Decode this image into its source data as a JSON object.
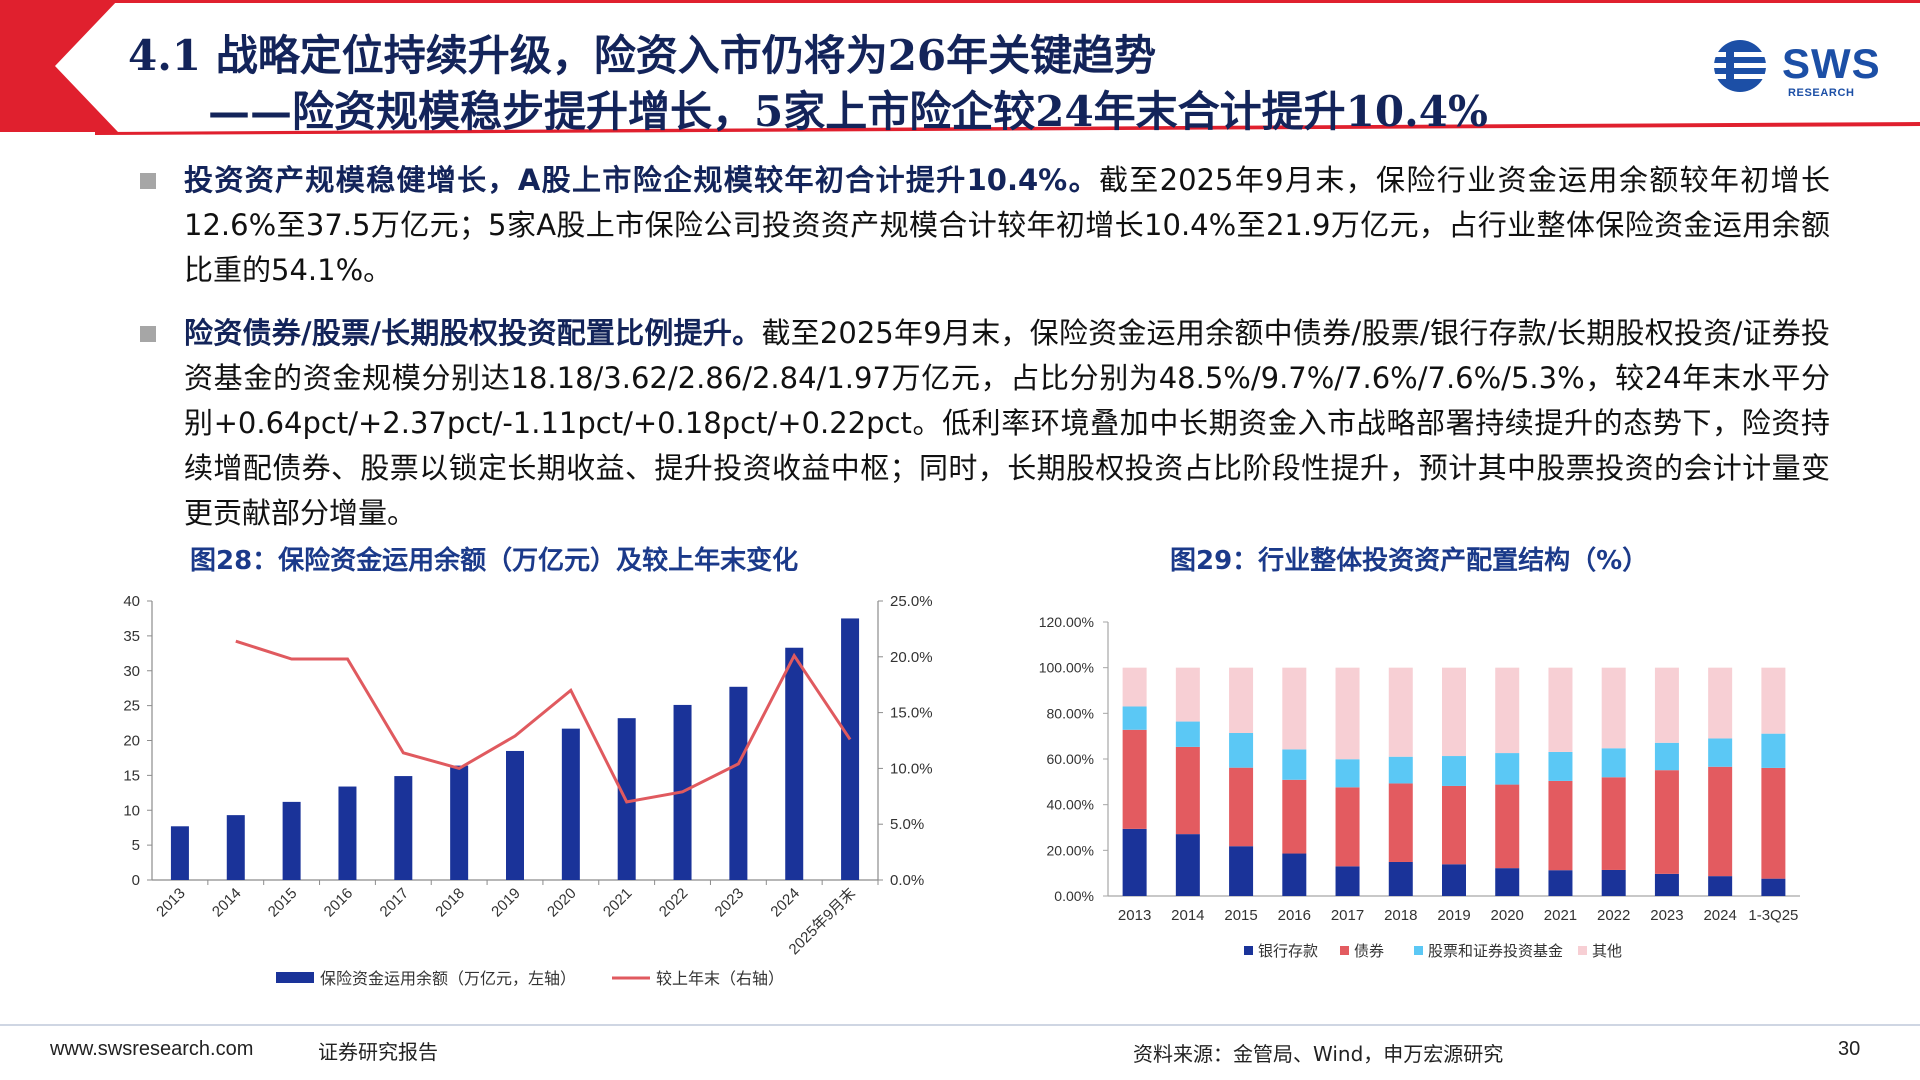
{
  "header": {
    "title_line1": "4.1 战略定位持续升级，险资入市仍将为26年关键趋势",
    "title_line2": "——险资规模稳步提升增长，5家上市险企较24年末合计提升10.4%",
    "logo_text": "SWS",
    "logo_sub": "RESEARCH",
    "colors": {
      "accent": "#e0202e",
      "title": "#13245a",
      "brand": "#1c4fa6"
    }
  },
  "bullets": [
    {
      "lead": "投资资产规模稳健增长，A股上市险企规模较年初合计提升10.4%。",
      "body": "截至2025年9月末，保险行业资金运用余额较年初增长12.6%至37.5万亿元；5家A股上市保险公司投资资产规模合计较年初增长10.4%至21.9万亿元，占行业整体保险资金运用余额比重的54.1%。"
    },
    {
      "lead": "险资债券/股票/长期股权投资配置比例提升。",
      "body": "截至2025年9月末，保险资金运用余额中债券/股票/银行存款/长期股权投资/证券投资基金的资金规模分别达18.18/3.62/2.86/2.84/1.97万亿元，占比分别为48.5%/9.7%/7.6%/7.6%/5.3%，较24年末水平分别+0.64pct/+2.37pct/-1.11pct/+0.18pct/+0.22pct。低利率环境叠加中长期资金入市战略部署持续提升的态势下，险资持续增配债券、股票以锁定长期收益、提升投资收益中枢；同时，长期股权投资占比阶段性提升，预计其中股票投资的会计计量变更贡献部分增量。"
    }
  ],
  "figures": {
    "fig28_title": "图28：保险资金运用余额（万亿元）及较上年末变化",
    "fig29_title": "图29：行业整体投资资产配置结构（%）"
  },
  "chart_data": [
    {
      "type": "bar",
      "categories": [
        "2013",
        "2014",
        "2015",
        "2016",
        "2017",
        "2018",
        "2019",
        "2020",
        "2021",
        "2022",
        "2023",
        "2024",
        "2025年9月末"
      ],
      "series": [
        {
          "name": "保险资金运用余额（万亿元，左轴）",
          "type": "bar",
          "axis": "left",
          "color": "#1a3399",
          "values": [
            7.7,
            9.3,
            11.2,
            13.4,
            14.9,
            16.4,
            18.5,
            21.7,
            23.2,
            25.1,
            27.7,
            33.3,
            37.5
          ]
        },
        {
          "name": "较上年末（右轴）",
          "type": "line",
          "axis": "right",
          "color": "#e05a5f",
          "values": [
            null,
            21.4,
            19.8,
            19.8,
            11.4,
            10.0,
            12.9,
            17.0,
            7.0,
            7.9,
            10.4,
            20.1,
            12.6
          ]
        }
      ],
      "y_left": {
        "min": 0,
        "max": 40,
        "ticks": [
          "0",
          "5",
          "10",
          "15",
          "20",
          "25",
          "30",
          "35",
          "40"
        ]
      },
      "y_right": {
        "min": 0,
        "max": 25,
        "ticks": [
          "0.0%",
          "5.0%",
          "10.0%",
          "15.0%",
          "20.0%",
          "25.0%"
        ]
      },
      "grid": false,
      "legend_position": "bottom"
    },
    {
      "type": "bar",
      "stacked": true,
      "categories": [
        "2013",
        "2014",
        "2015",
        "2016",
        "2017",
        "2018",
        "2019",
        "2020",
        "2021",
        "2022",
        "2023",
        "2024",
        "1-3Q25"
      ],
      "series": [
        {
          "name": "银行存款",
          "color": "#1a3399",
          "values": [
            29.4,
            27.1,
            21.8,
            18.6,
            13.0,
            14.9,
            13.9,
            12.2,
            11.3,
            11.4,
            9.7,
            8.7,
            7.6
          ]
        },
        {
          "name": "债券",
          "color": "#e35b60",
          "values": [
            43.4,
            38.2,
            34.4,
            32.3,
            34.6,
            34.4,
            34.3,
            36.6,
            39.1,
            40.6,
            45.4,
            47.9,
            48.5
          ]
        },
        {
          "name": "股票和证券投资基金",
          "color": "#5bc8f5",
          "values": [
            10.2,
            11.1,
            15.2,
            13.3,
            12.3,
            11.7,
            13.1,
            13.8,
            12.7,
            12.7,
            12.0,
            12.4,
            15.0
          ]
        },
        {
          "name": "其他",
          "color": "#f7cfd4",
          "values": [
            17.0,
            23.6,
            28.6,
            35.8,
            40.1,
            39.0,
            38.7,
            37.4,
            36.9,
            35.3,
            32.9,
            31.0,
            28.9
          ]
        }
      ],
      "y": {
        "min": 0,
        "max": 120,
        "ticks": [
          "0.00%",
          "20.00%",
          "40.00%",
          "60.00%",
          "80.00%",
          "100.00%",
          "120.00%"
        ]
      },
      "grid": false,
      "legend_position": "bottom"
    }
  ],
  "footer": {
    "website": "www.swsresearch.com",
    "report_type": "证券研究报告",
    "source": "资料来源：金管局、Wind，申万宏源研究",
    "page_number": "30"
  }
}
